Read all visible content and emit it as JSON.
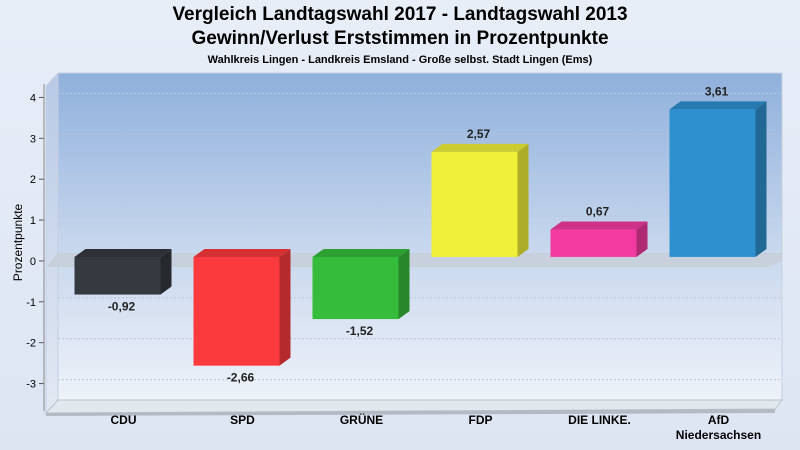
{
  "header": {
    "title_line1": "Vergleich Landtagswahl 2017 - Landtagswahl 2013",
    "title_line2": "Gewinn/Verlust Erststimmen in Prozentpunkte",
    "subtitle": "Wahlkreis Lingen - Landkreis Emsland - Große selbst. Stadt Lingen (Ems)"
  },
  "chart_data": {
    "type": "bar",
    "title": "Vergleich Landtagswahl 2017 - Landtagswahl 2013\nGewinn/Verlust Erststimmen in Prozentpunkte",
    "subtitle": "Wahlkreis Lingen - Landkreis Emsland - Große selbst. Stadt Lingen (Ems)",
    "xlabel": "",
    "ylabel": "Prozentpunkte",
    "ylim": [
      -3.5,
      4.5
    ],
    "yticks": [
      4,
      3,
      2,
      1,
      0,
      -1,
      -2,
      -3
    ],
    "ytick_labels": [
      "4",
      "3",
      "2",
      "1",
      "0",
      "-1",
      "-2",
      "-3"
    ],
    "grid": true,
    "categories": [
      "CDU",
      "SPD",
      "GRÜNE",
      "FDP",
      "DIE LINKE.",
      "AfD Niedersachsen"
    ],
    "category_labels": [
      [
        "CDU"
      ],
      [
        "SPD"
      ],
      [
        "GRÜNE"
      ],
      [
        "FDP"
      ],
      [
        "DIE LINKE."
      ],
      [
        "AfD",
        "Niedersachsen"
      ]
    ],
    "values": [
      -0.92,
      -2.66,
      -1.52,
      2.57,
      0.67,
      3.61
    ],
    "value_labels": [
      "-0,92",
      "-2,66",
      "-1,52",
      "2,57",
      "0,67",
      "3,61"
    ],
    "colors": [
      "#353a40",
      "#fb3a3d",
      "#36bc3b",
      "#f0f03a",
      "#f23aa0",
      "#2e90cf"
    ]
  }
}
